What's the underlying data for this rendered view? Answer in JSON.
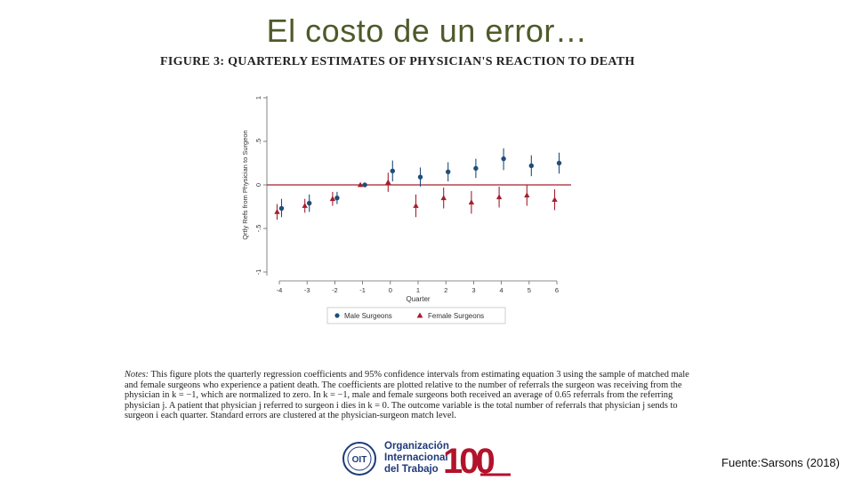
{
  "slide": {
    "title": "El costo de un error…",
    "source": "Fuente:Sarsons (2018)"
  },
  "figure": {
    "title": "FIGURE 3: QUARTERLY ESTIMATES OF PHYSICIAN'S REACTION TO DEATH",
    "notes_label": "Notes:",
    "notes_text": " This figure plots the quarterly regression coefficients and 95% confidence intervals from estimating equation 3 using the sample of matched male and female surgeons who experience a patient death. The coefficients are plotted relative to the number of referrals the surgeon was receiving from the physician in k = −1, which are normalized to zero. In k = −1, male and female surgeons both received an average of 0.65 referrals from the referring physician j. A patient that physician j referred to surgeon i dies in k = 0. The outcome variable is the total number of referrals that physician j sends to surgeon i each quarter. Standard errors are clustered at the physician-surgeon match level."
  },
  "logo": {
    "org_line1": "Organización",
    "org_line2": "Internacional",
    "org_line3": "del Trabajo",
    "badge": "OIT",
    "anniversary": "100"
  },
  "chart_data": {
    "type": "scatter",
    "title": "",
    "xlabel": "Quarter",
    "ylabel": "Qrtly Refs from Physician to Surgeon",
    "x_ticks": [
      -4,
      -3,
      -2,
      -1,
      0,
      1,
      2,
      3,
      4,
      5,
      6
    ],
    "y_ticks": [
      -1,
      -0.5,
      0,
      0.5,
      1
    ],
    "y_tick_labels": [
      "-1",
      "-.5",
      "0",
      ".5",
      "1"
    ],
    "xlim": [
      -4.5,
      6.5
    ],
    "ylim": [
      -1,
      1
    ],
    "reference_line": 0,
    "series": [
      {
        "name": "Male Surgeons",
        "marker": "circle",
        "color": "#1f4e79",
        "x": [
          -4,
          -3,
          -2,
          -1,
          0,
          1,
          2,
          3,
          4,
          5,
          6
        ],
        "values": [
          -0.27,
          -0.21,
          -0.15,
          0.0,
          0.16,
          0.09,
          0.15,
          0.19,
          0.3,
          0.22,
          0.25
        ],
        "ci_low": [
          -0.37,
          -0.31,
          -0.22,
          0.0,
          0.04,
          -0.02,
          0.04,
          0.08,
          0.17,
          0.1,
          0.13
        ],
        "ci_high": [
          -0.16,
          -0.11,
          -0.08,
          0.0,
          0.28,
          0.2,
          0.26,
          0.3,
          0.42,
          0.34,
          0.37
        ]
      },
      {
        "name": "Female Surgeons",
        "marker": "triangle",
        "color": "#a3202e",
        "x": [
          -4,
          -3,
          -2,
          -1,
          0,
          1,
          2,
          3,
          4,
          5,
          6
        ],
        "values": [
          -0.31,
          -0.24,
          -0.16,
          0.0,
          0.03,
          -0.24,
          -0.15,
          -0.2,
          -0.14,
          -0.12,
          -0.17
        ],
        "ci_low": [
          -0.4,
          -0.32,
          -0.24,
          0.0,
          -0.08,
          -0.37,
          -0.27,
          -0.33,
          -0.26,
          -0.24,
          -0.29
        ],
        "ci_high": [
          -0.22,
          -0.16,
          -0.08,
          0.0,
          0.14,
          -0.11,
          -0.03,
          -0.07,
          -0.02,
          0.0,
          -0.05
        ]
      }
    ],
    "legend": [
      "Male Surgeons",
      "Female Surgeons"
    ],
    "legend_position": "bottom"
  }
}
